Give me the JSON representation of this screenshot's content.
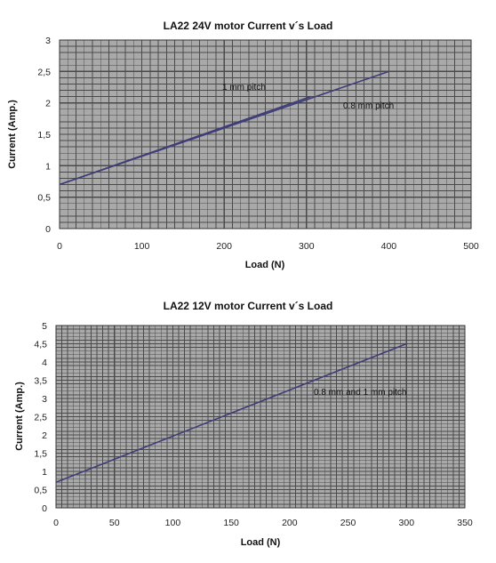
{
  "chart_data": [
    {
      "type": "line",
      "title": "LA22 24V motor Current v´s Load",
      "xlabel": "Load (N)",
      "ylabel": "Current (Amp.)",
      "xlim": [
        0,
        500
      ],
      "ylim": [
        0,
        3
      ],
      "xticks": [
        "0",
        "100",
        "200",
        "300",
        "400",
        "500"
      ],
      "yticks": [
        "0",
        "0,5",
        "1",
        "1,5",
        "2",
        "2,5",
        "3"
      ],
      "grid": true,
      "series": [
        {
          "name": "1 mm pitch",
          "x": [
            0,
            305
          ],
          "y": [
            0.7,
            2.1
          ]
        },
        {
          "name": "0.8 mm pitch",
          "x": [
            0,
            400
          ],
          "y": [
            0.7,
            2.5
          ]
        }
      ]
    },
    {
      "type": "line",
      "title": "LA22 12V motor Current v´s Load",
      "xlabel": "Load (N)",
      "ylabel": "Current (Amp.)",
      "xlim": [
        0,
        350
      ],
      "ylim": [
        0,
        5
      ],
      "xticks": [
        "0",
        "50",
        "100",
        "150",
        "200",
        "250",
        "300",
        "350"
      ],
      "yticks": [
        "0",
        "0,5",
        "1",
        "1,5",
        "2",
        "2,5",
        "3",
        "3,5",
        "4",
        "4,5",
        "5"
      ],
      "grid": true,
      "series": [
        {
          "name": "0.8 mm and 1 mm pitch",
          "x": [
            0,
            300
          ],
          "y": [
            0.7,
            4.5
          ]
        }
      ]
    }
  ],
  "colors": {
    "plot_bg": "#a9a9a9",
    "grid": "#4a4a4a",
    "line": "#3f3d78"
  }
}
